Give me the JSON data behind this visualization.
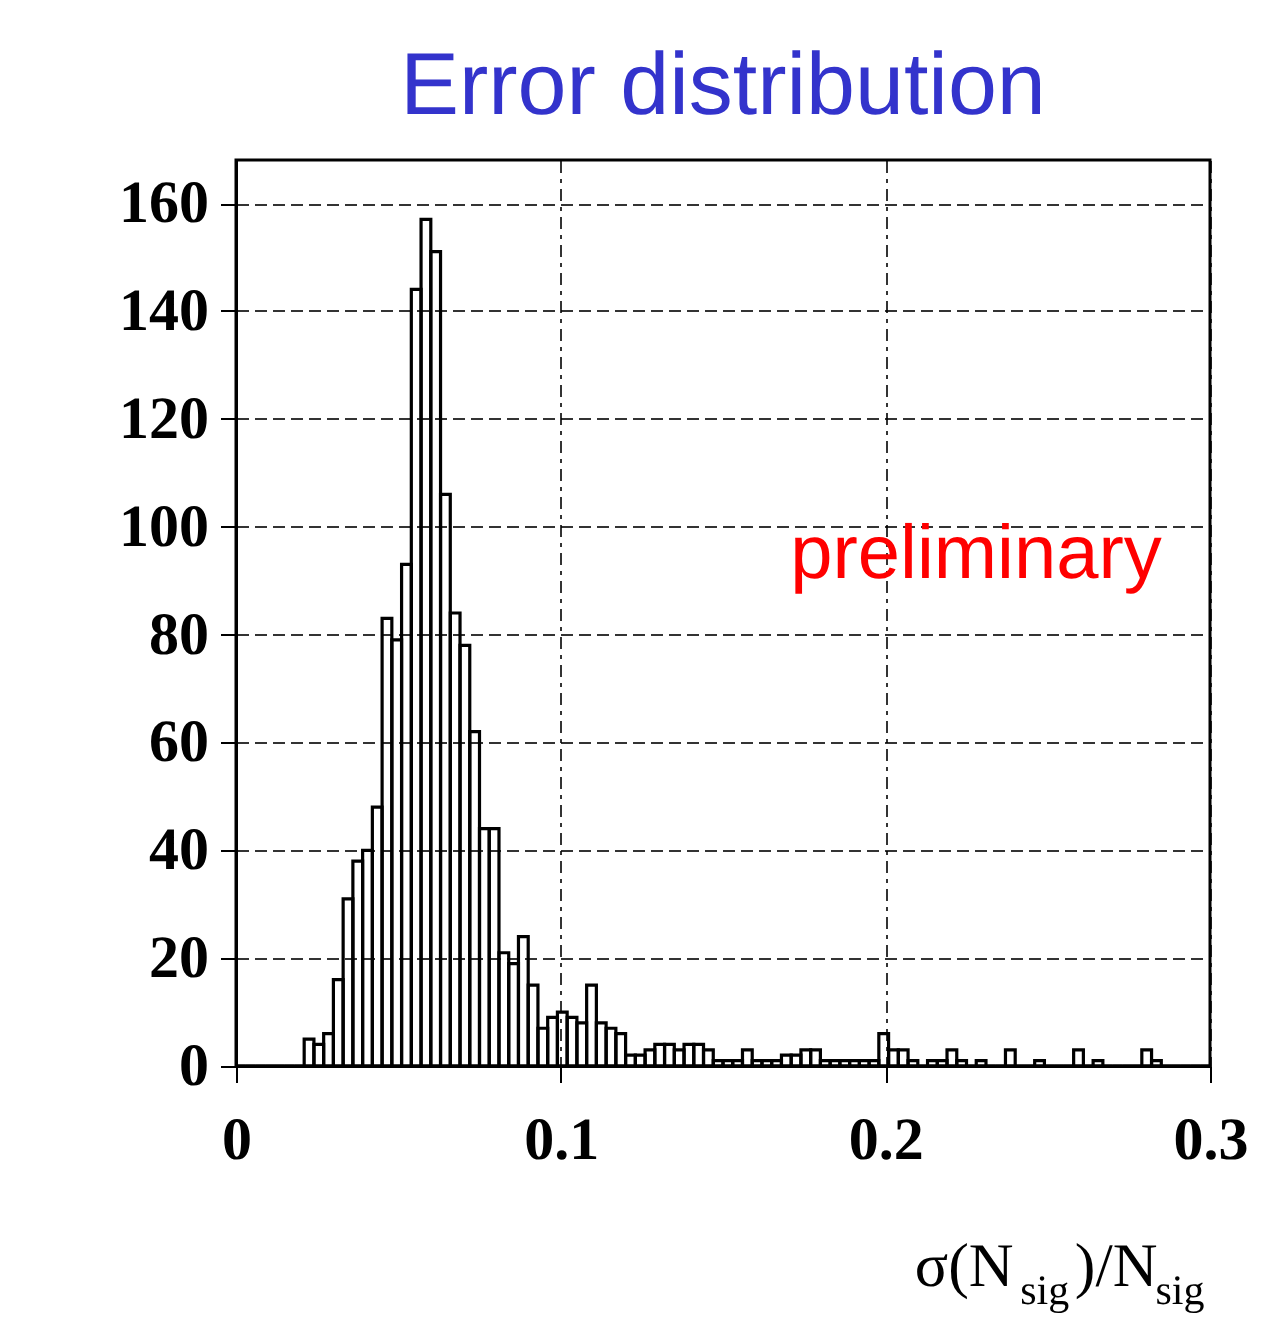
{
  "chart_data": {
    "type": "histogram",
    "title": "Error distribution",
    "xlabel": "σ(N$_{sig}$)/N$_{sig}$",
    "bins": [
      0,
      0.003,
      0.006,
      0.009,
      0.012,
      0.015,
      0.018,
      0.021,
      0.024,
      0.027,
      0.03,
      0.033,
      0.036,
      0.039,
      0.042,
      0.045,
      0.048,
      0.051,
      0.054,
      0.057,
      0.06,
      0.063,
      0.066,
      0.069,
      0.072,
      0.075,
      0.078,
      0.081,
      0.084,
      0.087,
      0.09,
      0.093,
      0.096,
      0.099,
      0.102,
      0.105,
      0.108,
      0.111,
      0.114,
      0.117,
      0.12,
      0.123,
      0.126,
      0.129,
      0.132,
      0.135,
      0.138,
      0.141,
      0.144,
      0.147,
      0.15,
      0.153,
      0.156,
      0.159,
      0.162,
      0.165,
      0.168,
      0.171,
      0.174,
      0.177,
      0.18,
      0.183,
      0.186,
      0.189,
      0.192,
      0.195,
      0.198,
      0.201,
      0.204,
      0.207,
      0.21,
      0.213,
      0.216,
      0.219,
      0.222,
      0.225,
      0.228,
      0.231,
      0.234,
      0.237,
      0.24,
      0.243,
      0.246,
      0.249,
      0.252,
      0.255,
      0.258,
      0.261,
      0.264,
      0.267,
      0.27,
      0.273,
      0.276,
      0.279,
      0.282,
      0.285,
      0.288,
      0.291,
      0.294,
      0.297,
      0.3
    ],
    "values": [
      0,
      0,
      0,
      0,
      0,
      0,
      0,
      5,
      4,
      6,
      16,
      31,
      38,
      40,
      48,
      83,
      79,
      93,
      144,
      157,
      151,
      106,
      84,
      78,
      62,
      44,
      44,
      21,
      19,
      24,
      15,
      7,
      9,
      10,
      9,
      8,
      15,
      8,
      7,
      6,
      2,
      2,
      3,
      4,
      4,
      3,
      4,
      4,
      3,
      1,
      1,
      1,
      3,
      1,
      1,
      1,
      2,
      2,
      3,
      3,
      1,
      1,
      1,
      1,
      1,
      1,
      6,
      3,
      3,
      1,
      0,
      1,
      1,
      3,
      1,
      0,
      1,
      0,
      0,
      3,
      0,
      0,
      1,
      0,
      0,
      0,
      3,
      0,
      1,
      0,
      0,
      0,
      0,
      3,
      1,
      0,
      0,
      0,
      0,
      0
    ],
    "color": "#000000",
    "xlim": [
      0,
      0.3
    ],
    "ylim": [
      0,
      168
    ],
    "xticks": [
      0,
      0.1,
      0.2,
      0.3
    ],
    "yticks": [
      0,
      20,
      40,
      60,
      80,
      100,
      120,
      140,
      160
    ],
    "grid": true,
    "annotations": [
      "preliminary"
    ]
  }
}
